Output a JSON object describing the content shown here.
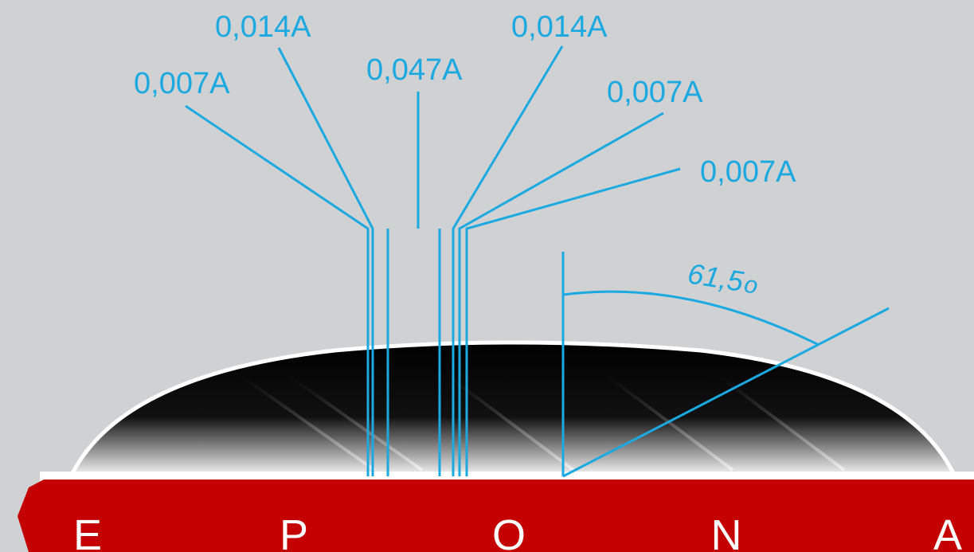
{
  "colors": {
    "background": "#d0d1d3",
    "accent": "#1ba9e1",
    "brand_red": "#c40000",
    "lens_dark": "#000000",
    "white": "#ffffff"
  },
  "labels": [
    {
      "id": "far-left",
      "text": "0,007A"
    },
    {
      "id": "left",
      "text": "0,014A"
    },
    {
      "id": "center",
      "text": "0,047A"
    },
    {
      "id": "right",
      "text": "0,014A"
    },
    {
      "id": "far-right-upper",
      "text": "0,007A"
    },
    {
      "id": "far-right-lower",
      "text": "0,007A"
    }
  ],
  "angle": {
    "text": "61,5",
    "value_degrees": 61.5,
    "degree_symbol": "o"
  },
  "brand": {
    "letters": [
      "E",
      "P",
      "O",
      "N",
      "A"
    ]
  }
}
